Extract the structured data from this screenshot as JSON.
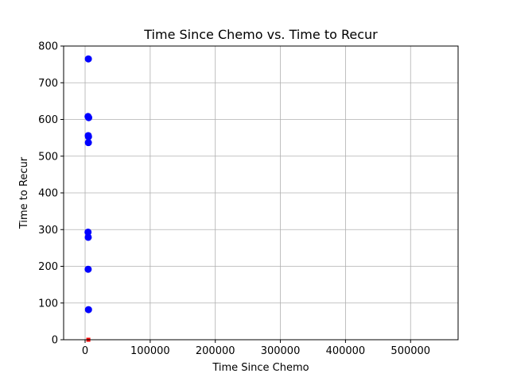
{
  "chart_data": {
    "type": "scatter",
    "title": "Time Since Chemo vs. Time to Recur",
    "xlabel": "Time Since Chemo",
    "ylabel": "Time to Recur",
    "xlim": [
      -33000,
      573000
    ],
    "ylim": [
      0,
      800
    ],
    "xticks": [
      0,
      100000,
      200000,
      300000,
      400000,
      500000
    ],
    "xtick_labels": [
      "0",
      "100000",
      "200000",
      "300000",
      "400000",
      "500000"
    ],
    "yticks": [
      0,
      100,
      200,
      300,
      400,
      500,
      600,
      700,
      800
    ],
    "ytick_labels": [
      "0",
      "100",
      "200",
      "300",
      "400",
      "500",
      "600",
      "700",
      "800"
    ],
    "grid": true,
    "series": [
      {
        "color": "#0000ff",
        "marker": "circle",
        "points": [
          {
            "x": 5000,
            "y": 765
          },
          {
            "x": 4500,
            "y": 608
          },
          {
            "x": 5500,
            "y": 605
          },
          {
            "x": 4800,
            "y": 556
          },
          {
            "x": 5200,
            "y": 553
          },
          {
            "x": 5000,
            "y": 537
          },
          {
            "x": 4500,
            "y": 293
          },
          {
            "x": 4800,
            "y": 279
          },
          {
            "x": 4700,
            "y": 192
          },
          {
            "x": 5200,
            "y": 82
          }
        ]
      },
      {
        "color": "#ff0000",
        "marker": "square",
        "points": [
          {
            "x": 5000,
            "y": 0
          }
        ]
      }
    ]
  }
}
